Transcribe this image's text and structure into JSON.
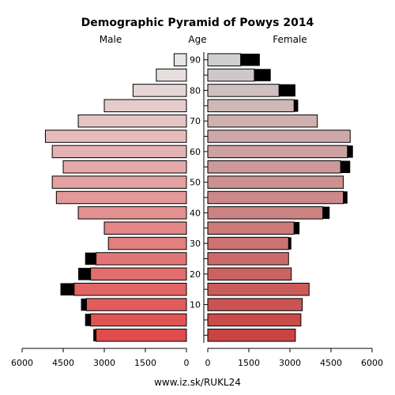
{
  "chart_data": {
    "type": "bar",
    "orientation": "horizontal-population-pyramid",
    "title": "Demographic Pyramid of Powys 2014",
    "left_header": "Male",
    "center_header": "Age",
    "right_header": "Female",
    "footer": "www.iz.sk/RUKL24",
    "age_groups": [
      "0-4",
      "5-9",
      "10-14",
      "15-19",
      "20-24",
      "25-29",
      "30-34",
      "35-39",
      "40-44",
      "45-49",
      "50-54",
      "55-59",
      "60-64",
      "65-69",
      "70-74",
      "75-79",
      "80-84",
      "85-89",
      "90+"
    ],
    "age_tick_labels": [
      "10",
      "20",
      "30",
      "40",
      "50",
      "60",
      "70",
      "80",
      "90"
    ],
    "x_ticks_male": [
      "6000",
      "4500",
      "3000",
      "1500",
      "0"
    ],
    "x_ticks_female": [
      "0",
      "1500",
      "3000",
      "4500",
      "6000"
    ],
    "xlim": [
      0,
      6000
    ],
    "series": [
      {
        "name": "Male",
        "values": [
          3300,
          3500,
          3650,
          4100,
          3500,
          3300,
          2850,
          3000,
          3950,
          4750,
          4900,
          4500,
          4900,
          5150,
          3950,
          3000,
          1950,
          1100,
          450
        ],
        "excess": [
          100,
          200,
          200,
          500,
          450,
          400,
          0,
          0,
          0,
          0,
          0,
          0,
          0,
          0,
          0,
          0,
          0,
          0,
          0
        ]
      },
      {
        "name": "Female",
        "values": [
          3200,
          3400,
          3450,
          3700,
          3050,
          2950,
          2950,
          3150,
          4200,
          4950,
          4950,
          4850,
          5100,
          5200,
          4000,
          3150,
          2600,
          1700,
          1200
        ],
        "excess": [
          0,
          0,
          0,
          0,
          0,
          0,
          100,
          200,
          250,
          150,
          0,
          350,
          200,
          0,
          0,
          150,
          600,
          600,
          700
        ]
      }
    ],
    "colors": {
      "bottom_bar": "#e14b4b",
      "top_bar": "#e6e6e6",
      "excess": "#000000",
      "outline": "#000000"
    }
  }
}
